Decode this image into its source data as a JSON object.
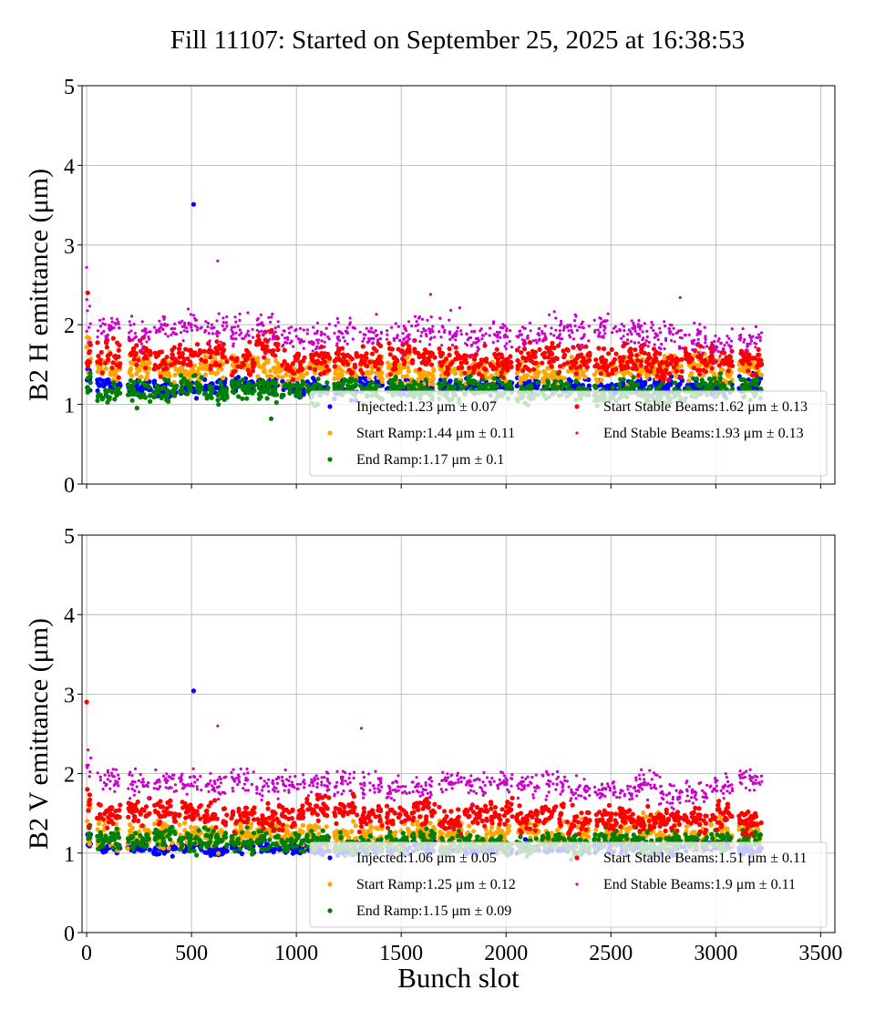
{
  "chart_data": {
    "title": "Fill 11107: Started on September 25, 2025 at 16:38:53",
    "type": "scatter",
    "xlabel": "Bunch slot",
    "xlim": [
      -22,
      3568
    ],
    "xticks": [
      0,
      500,
      1000,
      1500,
      2000,
      2500,
      3000,
      3500
    ],
    "yticks": [
      0,
      1,
      2,
      3,
      4,
      5
    ],
    "grid": true,
    "legend_placement": "lower-right",
    "train_starts": [
      50,
      195,
      320,
      440,
      560,
      690,
      810,
      930,
      1050,
      1180,
      1300,
      1430,
      1550,
      1680,
      1800,
      1920,
      2050,
      2170,
      2290,
      2420,
      2540,
      2630,
      2730,
      2850,
      2970,
      3110
    ],
    "train_length": 110,
    "panels": [
      {
        "ylabel": "B2 H emittance (μm)",
        "ylim": [
          0,
          5
        ],
        "series": [
          {
            "name": "Injected",
            "legend": "Injected:1.23 μm ± 0.07",
            "mean": 1.23,
            "std": 0.07,
            "color": "#0000ff",
            "outliers": [
              [
                510,
                3.51
              ]
            ]
          },
          {
            "name": "Start Ramp",
            "legend": "Start Ramp:1.44 μm ± 0.11",
            "mean": 1.44,
            "std": 0.11,
            "color": "#ffa500",
            "outliers": []
          },
          {
            "name": "End Ramp",
            "legend": "End Ramp:1.17 μm ± 0.1",
            "mean": 1.17,
            "std": 0.1,
            "color": "#008000",
            "outliers": [
              [
                880,
                0.82
              ]
            ]
          },
          {
            "name": "Start Stable Beams",
            "legend": "Start Stable Beams:1.62 μm ± 0.13",
            "mean": 1.62,
            "std": 0.13,
            "color": "#ff0000",
            "outliers": [
              [
                5,
                2.4
              ]
            ]
          },
          {
            "name": "End Stable Beams",
            "legend": "End Stable Beams:1.93 μm ± 0.13",
            "mean": 1.93,
            "std": 0.13,
            "color": "#cc00cc",
            "outliers": [
              [
                0,
                2.72
              ],
              [
                625,
                2.8
              ],
              [
                1640,
                2.38
              ],
              [
                2830,
                2.34
              ]
            ]
          }
        ]
      },
      {
        "ylabel": "B2 V emittance (μm)",
        "ylim": [
          0,
          5
        ],
        "series": [
          {
            "name": "Injected",
            "legend": "Injected:1.06 μm ± 0.05",
            "mean": 1.06,
            "std": 0.05,
            "color": "#0000ff",
            "outliers": [
              [
                510,
                3.04
              ]
            ]
          },
          {
            "name": "Start Ramp",
            "legend": "Start Ramp:1.25 μm ± 0.12",
            "mean": 1.25,
            "std": 0.12,
            "color": "#ffa500",
            "outliers": []
          },
          {
            "name": "End Ramp",
            "legend": "End Ramp:1.15 μm ± 0.09",
            "mean": 1.15,
            "std": 0.09,
            "color": "#008000",
            "outliers": []
          },
          {
            "name": "Start Stable Beams",
            "legend": "Start Stable Beams:1.51 μm ± 0.11",
            "mean": 1.51,
            "std": 0.11,
            "color": "#ff0000",
            "outliers": [
              [
                0,
                2.9
              ]
            ]
          },
          {
            "name": "End Stable Beams",
            "legend": "End Stable Beams:1.9 μm ± 0.11",
            "mean": 1.9,
            "std": 0.11,
            "color": "#cc00cc",
            "outliers": [
              [
                625,
                2.6
              ],
              [
                1310,
                2.57
              ]
            ]
          }
        ]
      }
    ]
  }
}
